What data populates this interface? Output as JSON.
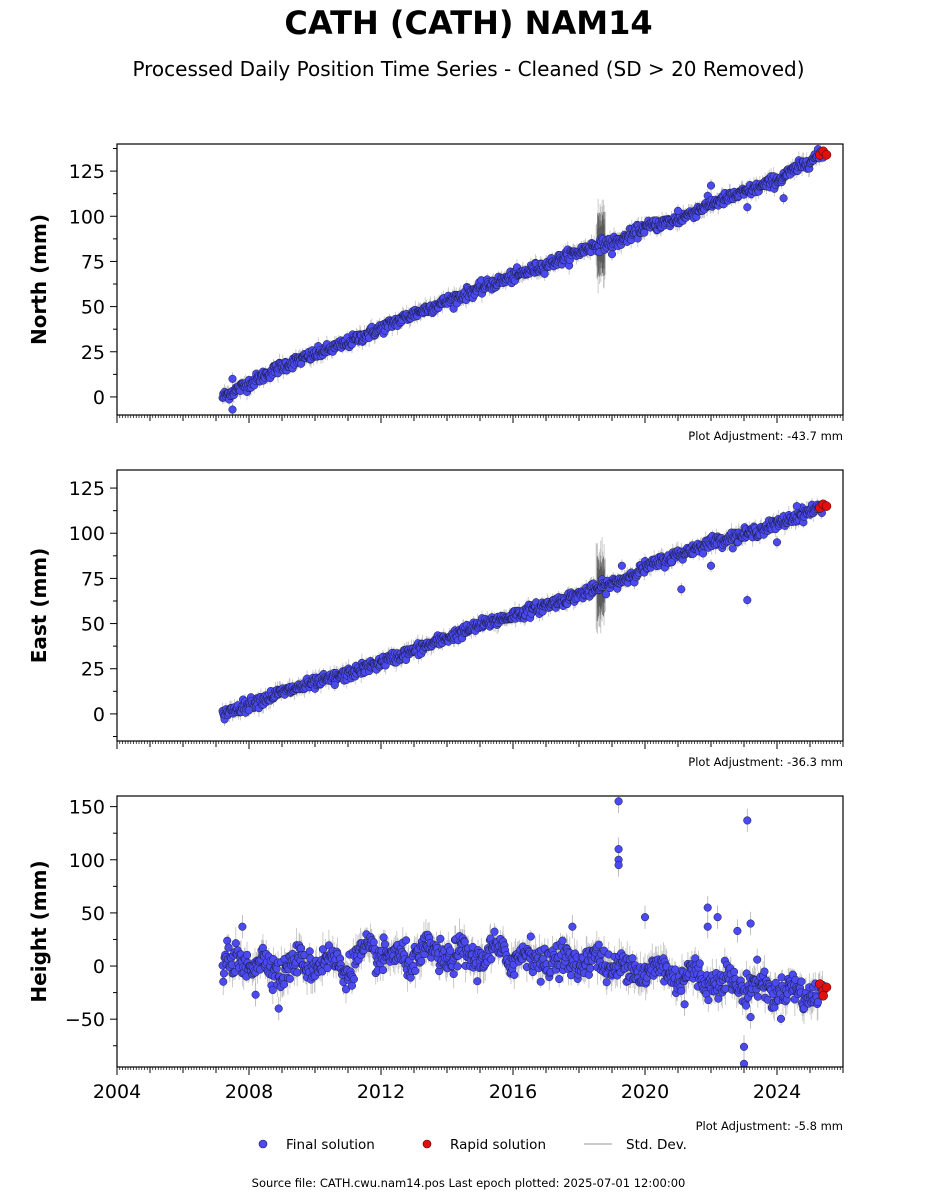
{
  "title": "CATH (CATH) NAM14",
  "subtitle": "Processed Daily Position Time Series - Cleaned (SD > 20 Removed)",
  "footer": "Source file: CATH.cwu.nam14.pos  Last epoch plotted: 2025-07-01 12:00:00",
  "colors": {
    "final": "#4a4af0",
    "final_edge": "#1a1a40",
    "rapid": "#e01010",
    "stddev": "#b8b8b8"
  },
  "legend": {
    "final": "Final solution",
    "rapid": "Rapid solution",
    "stddev": "Std. Dev."
  },
  "chart_data": [
    {
      "type": "scatter",
      "ylabel": "North (mm)",
      "adjustment": "Plot Adjustment: -43.7 mm",
      "xlim": [
        2004,
        2026
      ],
      "ylim": [
        -10,
        140
      ],
      "yticks": [
        0,
        25,
        50,
        75,
        100,
        125
      ],
      "xticks": [],
      "series": [
        {
          "trend": [
            [
              2007.2,
              0
            ],
            [
              2009,
              17
            ],
            [
              2011,
              30
            ],
            [
              2013,
              46
            ],
            [
              2015,
              60
            ],
            [
              2017,
              73
            ],
            [
              2018.5,
              84
            ],
            [
              2019.2,
              86
            ],
            [
              2020,
              94
            ],
            [
              2021,
              98
            ],
            [
              2022,
              107
            ],
            [
              2023,
              113
            ],
            [
              2024,
              120
            ],
            [
              2025.4,
              135
            ]
          ],
          "outliers": [
            [
              2007.5,
              -7
            ],
            [
              2007.5,
              10
            ],
            [
              2019,
              79
            ],
            [
              2022,
              117
            ],
            [
              2023.1,
              105
            ],
            [
              2024.2,
              110
            ],
            [
              2021,
              103
            ]
          ],
          "rapid": [
            [
              2025.3,
              134
            ],
            [
              2025.4,
              136
            ],
            [
              2025.5,
              134
            ]
          ]
        }
      ]
    },
    {
      "type": "scatter",
      "ylabel": "East (mm)",
      "adjustment": "Plot Adjustment: -36.3 mm",
      "xlim": [
        2004,
        2026
      ],
      "ylim": [
        -15,
        135
      ],
      "yticks": [
        0,
        25,
        50,
        75,
        100,
        125
      ],
      "xticks": [],
      "series": [
        {
          "trend": [
            [
              2007.2,
              0
            ],
            [
              2009,
              12
            ],
            [
              2011,
              22
            ],
            [
              2013,
              35
            ],
            [
              2015,
              49
            ],
            [
              2017,
              60
            ],
            [
              2018.5,
              69
            ],
            [
              2019.3,
              74
            ],
            [
              2020,
              81
            ],
            [
              2021,
              88
            ],
            [
              2022,
              95
            ],
            [
              2023,
              99
            ],
            [
              2024,
              105
            ],
            [
              2025.4,
              115
            ]
          ],
          "outliers": [
            [
              2008,
              2
            ],
            [
              2010.6,
              16
            ],
            [
              2021.1,
              69
            ],
            [
              2022,
              82
            ],
            [
              2023.1,
              63
            ],
            [
              2024,
              95
            ],
            [
              2024.6,
              115
            ],
            [
              2019.3,
              82
            ],
            [
              2020.8,
              84
            ]
          ],
          "rapid": [
            [
              2025.3,
              114
            ],
            [
              2025.4,
              116
            ],
            [
              2025.5,
              115
            ]
          ]
        }
      ]
    },
    {
      "type": "scatter",
      "ylabel": "Height (mm)",
      "adjustment": "Plot Adjustment: -5.8 mm",
      "xlim": [
        2004,
        2026
      ],
      "ylim": [
        -95,
        160
      ],
      "yticks": [
        -50,
        0,
        50,
        100,
        150
      ],
      "xticks": [
        "2004",
        "2008",
        "2012",
        "2016",
        "2020",
        "2024"
      ],
      "series": [
        {
          "trend": [
            [
              2007.2,
              0
            ],
            [
              2008,
              5
            ],
            [
              2009,
              -3
            ],
            [
              2010,
              5
            ],
            [
              2011,
              0
            ],
            [
              2011.8,
              15
            ],
            [
              2012.5,
              5
            ],
            [
              2013.5,
              12
            ],
            [
              2014.5,
              8
            ],
            [
              2015.5,
              12
            ],
            [
              2016.5,
              8
            ],
            [
              2017.5,
              5
            ],
            [
              2018.5,
              5
            ],
            [
              2019.5,
              -3
            ],
            [
              2020.5,
              -5
            ],
            [
              2021.5,
              -10
            ],
            [
              2022.5,
              -15
            ],
            [
              2023.5,
              -20
            ],
            [
              2024.5,
              -25
            ],
            [
              2025.4,
              -25
            ]
          ],
          "outliers": [
            [
              2019.2,
              155
            ],
            [
              2019.2,
              110
            ],
            [
              2019.2,
              100
            ],
            [
              2019.2,
              95
            ],
            [
              2023.1,
              137
            ],
            [
              2020,
              46
            ],
            [
              2021.9,
              55
            ],
            [
              2022.2,
              46
            ],
            [
              2021.9,
              37
            ],
            [
              2023.2,
              40
            ],
            [
              2022.8,
              33
            ],
            [
              2008.2,
              -27
            ],
            [
              2008.9,
              -40
            ],
            [
              2023,
              -76
            ],
            [
              2023,
              -92
            ],
            [
              2023.2,
              -48
            ],
            [
              2021.2,
              -36
            ],
            [
              2017.8,
              37
            ],
            [
              2007.8,
              37
            ]
          ],
          "rapid": [
            [
              2025.3,
              -17
            ],
            [
              2025.4,
              -23
            ],
            [
              2025.4,
              -28
            ],
            [
              2025.5,
              -20
            ]
          ]
        }
      ]
    }
  ]
}
